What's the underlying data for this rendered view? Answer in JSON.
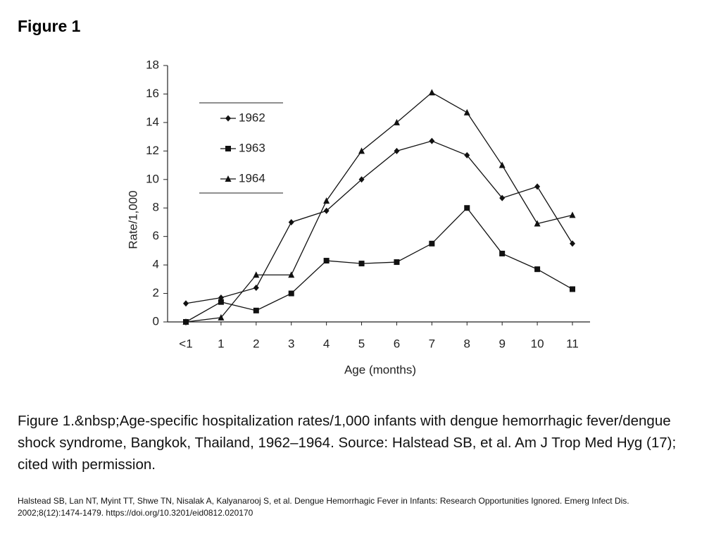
{
  "heading": "Figure 1",
  "chart_data": {
    "type": "line",
    "y_label": "Rate/1,000",
    "x_label": "Age (months)",
    "categories": [
      "<1",
      "1",
      "2",
      "3",
      "4",
      "5",
      "6",
      "7",
      "8",
      "9",
      "10",
      "11"
    ],
    "series": [
      {
        "name": "1962",
        "color": "#111111",
        "marker": "diamond",
        "values": [
          1.3,
          1.7,
          2.4,
          7.0,
          7.8,
          10.0,
          12.0,
          12.7,
          11.7,
          8.7,
          9.5,
          5.5
        ]
      },
      {
        "name": "1963",
        "color": "#111111",
        "marker": "square",
        "values": [
          0.0,
          1.4,
          0.8,
          2.0,
          4.3,
          4.1,
          4.2,
          5.5,
          8.0,
          4.8,
          3.7,
          2.3
        ]
      },
      {
        "name": "1964",
        "color": "#111111",
        "marker": "triangle",
        "values": [
          0.0,
          0.3,
          3.3,
          3.3,
          8.5,
          12.0,
          14.0,
          16.1,
          14.7,
          11.0,
          6.9,
          7.5
        ]
      }
    ],
    "ylim": [
      0,
      18
    ],
    "yticks": [
      0,
      2,
      4,
      6,
      8,
      10,
      12,
      14,
      16,
      18
    ],
    "grid": false
  },
  "caption": "Figure 1.&nbsp;Age-specific hospitalization rates/1,000 infants with dengue hemorrhagic fever/dengue shock syndrome, Bangkok, Thailand, 1962–1964. Source: Halstead SB, et al. Am J Trop Med Hyg (17); cited with permission.",
  "citation": "Halstead SB, Lan NT, Myint TT, Shwe TN, Nisalak A, Kalyanarooj S, et al. Dengue Hemorrhagic Fever in Infants: Research Opportunities Ignored. Emerg Infect Dis. 2002;8(12):1474-1479. https://doi.org/10.3201/eid0812.020170"
}
